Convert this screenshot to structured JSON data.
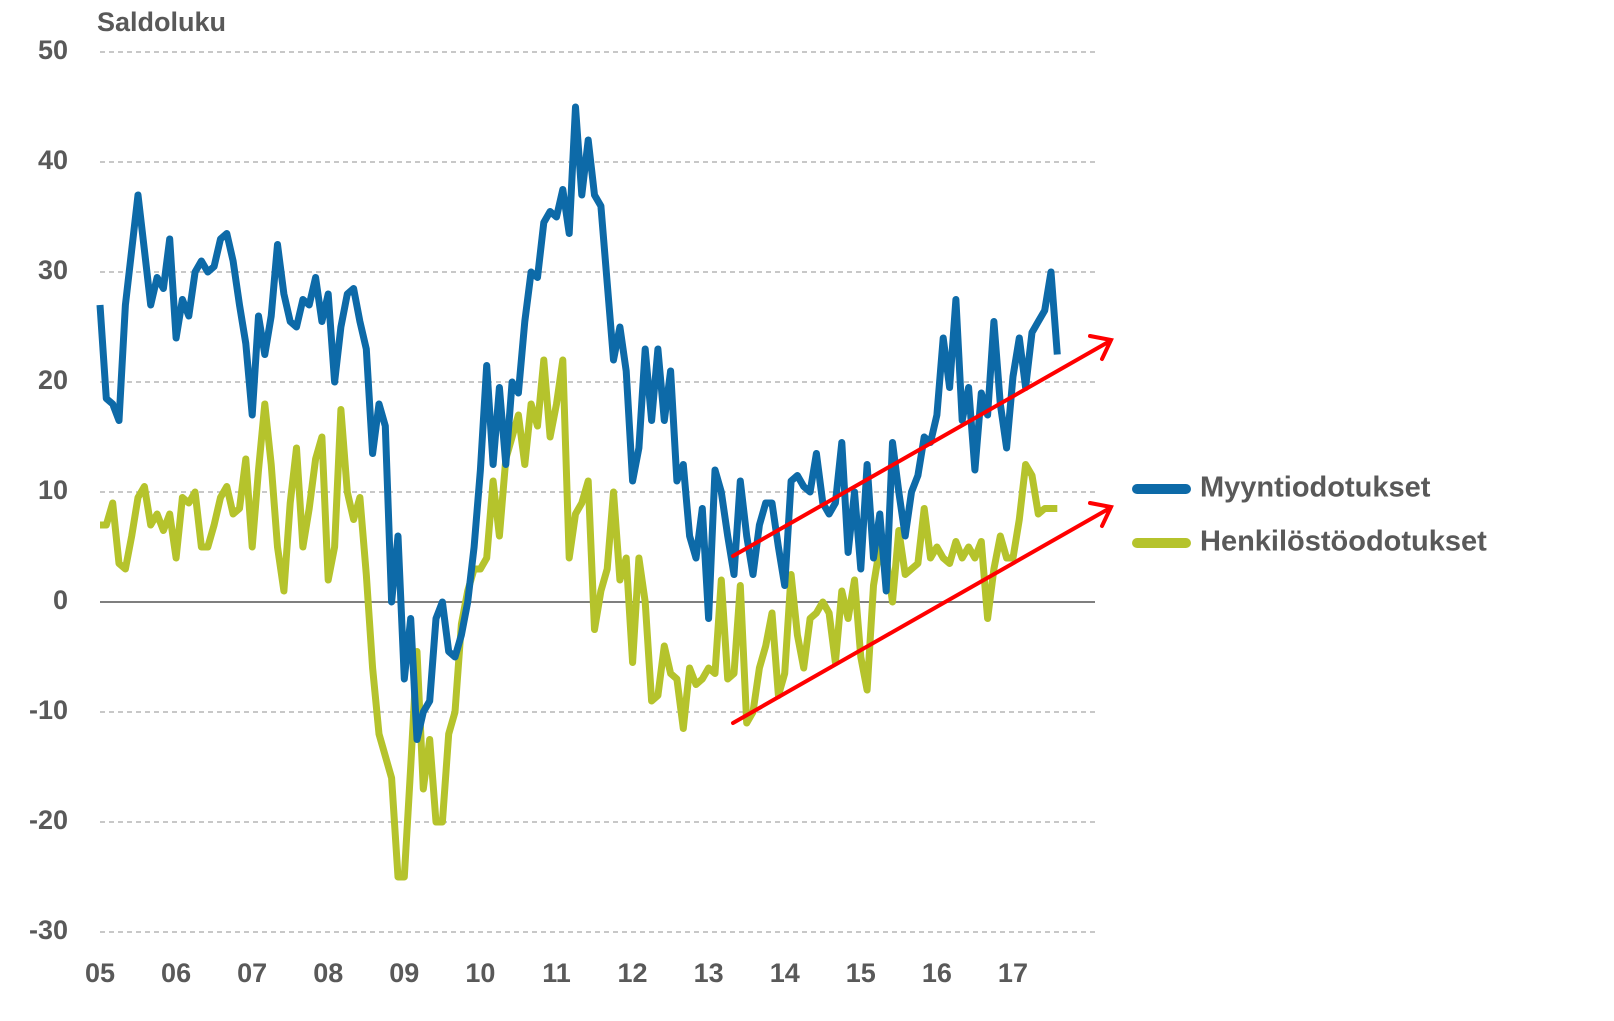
{
  "chart_data": {
    "type": "line",
    "y_label": "Saldoluku",
    "categories": [
      "05",
      null,
      null,
      null,
      null,
      null,
      null,
      null,
      null,
      null,
      null,
      null,
      "06",
      null,
      null,
      null,
      null,
      null,
      null,
      null,
      null,
      null,
      null,
      null,
      "07",
      null,
      null,
      null,
      null,
      null,
      null,
      null,
      null,
      null,
      null,
      null,
      "08",
      null,
      null,
      null,
      null,
      null,
      null,
      null,
      null,
      null,
      null,
      null,
      "09",
      null,
      null,
      null,
      null,
      null,
      null,
      null,
      null,
      null,
      null,
      null,
      "10",
      null,
      null,
      null,
      null,
      null,
      null,
      null,
      null,
      null,
      null,
      null,
      "11",
      null,
      null,
      null,
      null,
      null,
      null,
      null,
      null,
      null,
      null,
      null,
      "12",
      null,
      null,
      null,
      null,
      null,
      null,
      null,
      null,
      null,
      null,
      null,
      "13",
      null,
      null,
      null,
      null,
      null,
      null,
      null,
      null,
      null,
      null,
      null,
      "14",
      null,
      null,
      null,
      null,
      null,
      null,
      null,
      null,
      null,
      null,
      null,
      "15",
      null,
      null,
      null,
      null,
      null,
      null,
      null,
      null,
      null,
      null,
      null,
      "16",
      null,
      null,
      null,
      null,
      null,
      null,
      null,
      null,
      null,
      null,
      null,
      "17",
      null,
      null,
      null,
      null,
      null,
      null,
      null
    ],
    "series": [
      {
        "name": "Myyntiodotukset",
        "color": "#0d6aa8",
        "values": [
          27,
          18.5,
          18,
          16.5,
          27,
          32,
          37,
          32,
          27,
          29.5,
          28.5,
          33,
          24,
          27.5,
          26,
          30,
          31,
          30,
          30.5,
          33,
          33.5,
          31,
          27,
          23.5,
          17,
          26,
          22.5,
          26,
          32.5,
          28,
          25.5,
          25,
          27.5,
          27,
          29.5,
          25.5,
          28,
          20,
          25,
          28,
          28.5,
          25.5,
          23,
          13.5,
          18,
          16,
          0,
          6,
          -7,
          -1.5,
          -12.5,
          -10,
          -9,
          -1.5,
          0,
          -4.5,
          -5,
          -3,
          0,
          5,
          12,
          21.5,
          12.5,
          19.5,
          12.5,
          20,
          19,
          25.5,
          30,
          29.5,
          34.5,
          35.5,
          35,
          37.5,
          33.5,
          45,
          37,
          42,
          37,
          36,
          29,
          22,
          25,
          21,
          11,
          14,
          23,
          16.5,
          23,
          16.5,
          21,
          11,
          12.5,
          6,
          4,
          8.5,
          -1.5,
          12,
          10,
          6,
          2.5,
          11,
          6,
          2.5,
          7,
          9,
          9,
          5,
          1.5,
          11,
          11.5,
          10.5,
          10,
          13.5,
          9,
          8,
          9,
          14.5,
          4.5,
          10,
          3,
          12.5,
          4,
          8,
          1,
          14.5,
          10,
          6,
          10,
          11.5,
          15,
          14.5,
          17,
          24,
          19.5,
          27.5,
          16.5,
          19.5,
          12,
          19,
          17,
          25.5,
          18,
          14,
          20.5,
          24,
          19.5,
          24.5,
          25.5,
          26.5,
          30,
          22.5
        ]
      },
      {
        "name": "Henkilöstöodotukset",
        "color": "#b5c32c",
        "values": [
          7,
          7,
          9,
          3.5,
          3,
          6,
          9.5,
          10.5,
          7,
          8,
          6.5,
          8,
          4,
          9.5,
          9,
          10,
          5,
          5,
          7,
          9.5,
          10.5,
          8,
          8.5,
          13,
          5,
          12,
          18,
          12.5,
          5,
          1,
          9,
          14,
          5,
          8.5,
          13,
          15,
          2,
          5,
          17.5,
          10,
          7.5,
          9.5,
          2.5,
          -6,
          -12,
          -14,
          -16,
          -25,
          -25,
          -15,
          -4.5,
          -17,
          -12.5,
          -20,
          -20,
          -12,
          -10,
          -2,
          1,
          3,
          3,
          4,
          11,
          6,
          13,
          15,
          17,
          12.5,
          18,
          16,
          22,
          15,
          18,
          22,
          4,
          8,
          9,
          11,
          -2.5,
          1,
          3,
          10,
          2,
          4,
          -5.5,
          4,
          0,
          -9,
          -8.5,
          -4,
          -6.5,
          -7,
          -11.5,
          -6,
          -7.5,
          -7,
          -6,
          -6.5,
          2,
          -7,
          -6.5,
          1.5,
          -11,
          -10,
          -6,
          -4,
          -1,
          -8.5,
          -6.5,
          2.5,
          -3,
          -6,
          -1.5,
          -1,
          0,
          -1,
          -5.5,
          1,
          -1.5,
          2,
          -5,
          -8,
          1.5,
          5,
          4,
          0,
          6.5,
          2.5,
          3,
          3.5,
          8.5,
          4,
          5,
          4,
          3.5,
          5.5,
          4,
          5,
          4,
          5.5,
          -1.5,
          3,
          6,
          4,
          4,
          7.5,
          12.5,
          11.5,
          8,
          8.5,
          8.5,
          8.5
        ]
      }
    ],
    "ylim": [
      -30,
      50
    ],
    "yticks": [
      -30,
      -20,
      -10,
      0,
      10,
      20,
      30,
      40,
      50
    ],
    "grid": true,
    "legend": "right"
  }
}
